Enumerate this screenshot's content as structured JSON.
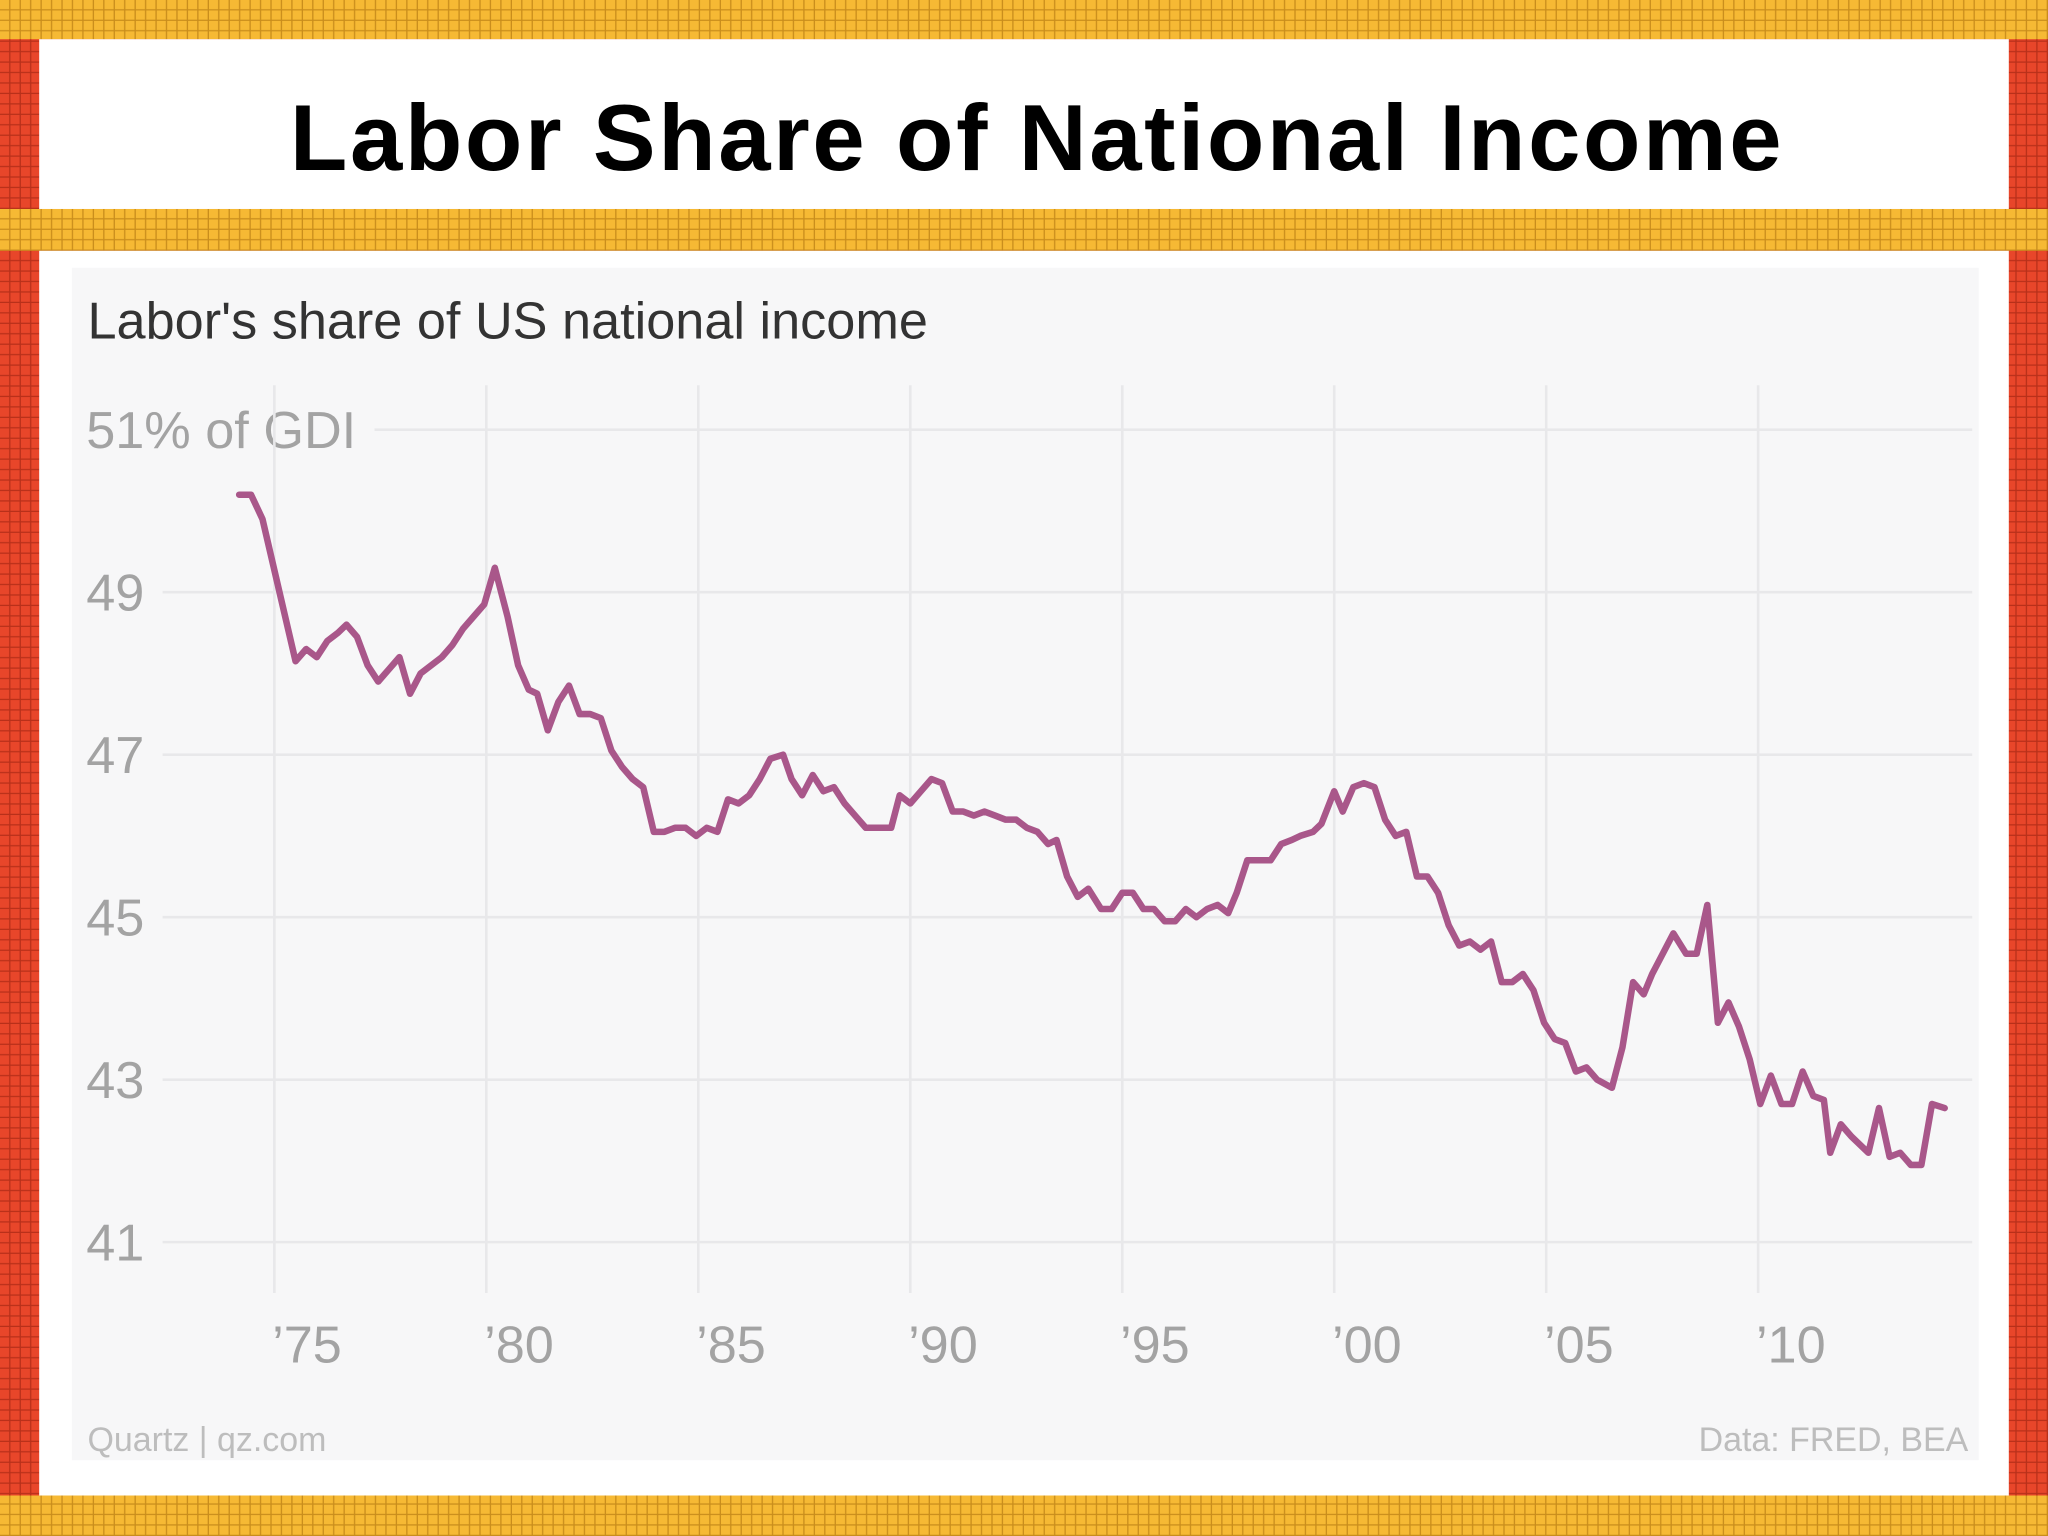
{
  "header": {
    "title": "Labor Share of National Income"
  },
  "chart_data": {
    "type": "line",
    "title": "Labor's share of US national income",
    "source": "Quartz | qz.com",
    "note": "Data: FRED, BEA",
    "color": "#a9578a",
    "grid": true,
    "xlim": [
      1970.5,
      2015.05
    ],
    "ylim": [
      41,
      51
    ],
    "xticks": [
      {
        "value": 1975,
        "label": "’75"
      },
      {
        "value": 1980,
        "label": "’80"
      },
      {
        "value": 1985,
        "label": "’85"
      },
      {
        "value": 1990,
        "label": "’90"
      },
      {
        "value": 1995,
        "label": "’95"
      },
      {
        "value": 2000,
        "label": "’00"
      },
      {
        "value": 2005,
        "label": "’05"
      },
      {
        "value": 2010,
        "label": "’10"
      }
    ],
    "yticks": [
      {
        "value": 51,
        "label": "51% of GDI"
      },
      49,
      47,
      45,
      43,
      41
    ],
    "x": [
      1974.17,
      1974.45,
      1974.72,
      1975.5,
      1975.75,
      1976.0,
      1976.25,
      1976.5,
      1976.7,
      1976.95,
      1977.2,
      1977.45,
      1977.7,
      1977.95,
      1978.2,
      1978.45,
      1978.7,
      1978.95,
      1979.2,
      1979.45,
      1979.7,
      1979.95,
      1980.2,
      1980.5,
      1980.75,
      1981.0,
      1981.2,
      1981.45,
      1981.7,
      1981.95,
      1982.2,
      1982.45,
      1982.7,
      1982.95,
      1983.2,
      1983.45,
      1983.7,
      1983.95,
      1984.2,
      1984.45,
      1984.7,
      1984.95,
      1985.2,
      1985.45,
      1985.7,
      1985.95,
      1986.2,
      1986.45,
      1986.7,
      1987.0,
      1987.2,
      1987.45,
      1987.7,
      1987.95,
      1988.2,
      1988.45,
      1988.7,
      1988.95,
      1989.2,
      1989.55,
      1989.75,
      1990.0,
      1990.25,
      1990.5,
      1990.75,
      1991.0,
      1991.25,
      1991.5,
      1991.75,
      1992.0,
      1992.25,
      1992.5,
      1992.75,
      1993.0,
      1993.25,
      1993.45,
      1993.7,
      1993.95,
      1994.2,
      1994.5,
      1994.75,
      1995.0,
      1995.25,
      1995.5,
      1995.75,
      1996.0,
      1996.25,
      1996.5,
      1996.75,
      1997.0,
      1997.25,
      1997.5,
      1997.7,
      1997.95,
      1998.25,
      1998.5,
      1998.75,
      1999.0,
      1999.2,
      1999.5,
      1999.7,
      2000.0,
      2000.2,
      2000.45,
      2000.7,
      2000.95,
      2001.2,
      2001.45,
      2001.7,
      2001.95,
      2002.2,
      2002.45,
      2002.7,
      2002.95,
      2003.2,
      2003.45,
      2003.7,
      2003.95,
      2004.2,
      2004.45,
      2004.7,
      2004.95,
      2005.2,
      2005.45,
      2005.7,
      2005.95,
      2006.2,
      2006.55,
      2006.8,
      2007.05,
      2007.3,
      2007.5,
      2007.8,
      2008.0,
      2008.3,
      2008.55,
      2008.8,
      2009.05,
      2009.3,
      2009.55,
      2009.8,
      2010.05,
      2010.3,
      2010.55,
      2010.8,
      2011.05,
      2011.3,
      2011.55,
      2011.7,
      2011.95,
      2012.2,
      2012.6,
      2012.85,
      2013.1,
      2013.35,
      2013.6,
      2013.85,
      2014.1,
      2014.4
    ],
    "values": [
      50.2,
      50.2,
      49.9,
      48.15,
      48.3,
      48.2,
      48.4,
      48.5,
      48.6,
      48.45,
      48.1,
      47.9,
      48.05,
      48.2,
      47.75,
      48.0,
      48.1,
      48.2,
      48.35,
      48.55,
      48.7,
      48.85,
      49.3,
      48.7,
      48.1,
      47.8,
      47.75,
      47.3,
      47.65,
      47.85,
      47.5,
      47.5,
      47.45,
      47.05,
      46.85,
      46.7,
      46.6,
      46.05,
      46.05,
      46.1,
      46.1,
      46.0,
      46.1,
      46.05,
      46.45,
      46.4,
      46.5,
      46.7,
      46.95,
      47.0,
      46.7,
      46.5,
      46.75,
      46.55,
      46.6,
      46.4,
      46.25,
      46.1,
      46.1,
      46.1,
      46.5,
      46.4,
      46.55,
      46.7,
      46.65,
      46.3,
      46.3,
      46.25,
      46.3,
      46.25,
      46.2,
      46.2,
      46.1,
      46.05,
      45.9,
      45.95,
      45.5,
      45.25,
      45.35,
      45.1,
      45.1,
      45.3,
      45.3,
      45.1,
      45.1,
      44.95,
      44.95,
      45.1,
      45.0,
      45.1,
      45.15,
      45.05,
      45.3,
      45.7,
      45.7,
      45.7,
      45.9,
      45.95,
      46.0,
      46.05,
      46.15,
      46.55,
      46.3,
      46.6,
      46.65,
      46.6,
      46.2,
      46.0,
      46.05,
      45.5,
      45.5,
      45.3,
      44.9,
      44.65,
      44.7,
      44.6,
      44.7,
      44.2,
      44.2,
      44.3,
      44.1,
      43.7,
      43.5,
      43.45,
      43.1,
      43.15,
      43.0,
      42.9,
      43.4,
      44.2,
      44.05,
      44.3,
      44.6,
      44.8,
      44.55,
      44.55,
      45.15,
      43.7,
      43.95,
      43.65,
      43.25,
      42.7,
      43.05,
      42.7,
      42.7,
      43.1,
      42.8,
      42.75,
      42.1,
      42.45,
      42.3,
      42.1,
      42.65,
      42.05,
      42.1,
      41.95,
      41.95,
      42.7,
      42.65
    ]
  }
}
